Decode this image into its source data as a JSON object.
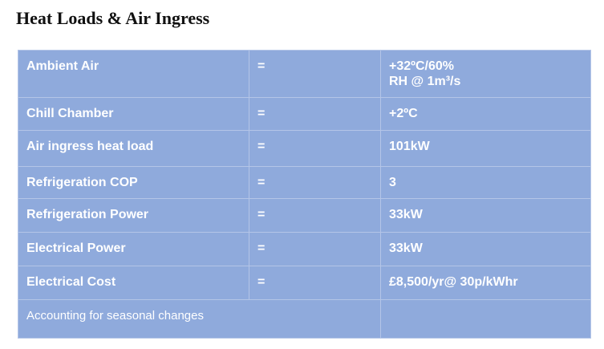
{
  "title": "Heat Loads & Air Ingress",
  "table": {
    "rows": [
      {
        "label": "Ambient Air",
        "op": "=",
        "value": "+32ºC/60%",
        "value_line2": "RH @ 1m³/s"
      },
      {
        "label": "Chill Chamber",
        "op": "=",
        "value": "+2ºC"
      },
      {
        "label": "Air ingress heat load",
        "op": "=",
        "value": "101kW"
      },
      {
        "label": "Refrigeration COP",
        "op": "=",
        "value": "3"
      },
      {
        "label": "Refrigeration Power",
        "op": "=",
        "value": "33kW"
      },
      {
        "label": "Electrical Power",
        "op": "=",
        "value": "33kW"
      },
      {
        "label": "Electrical Cost",
        "op": "=",
        "value": "£8,500/yr@ 30p/kWhr"
      }
    ],
    "footnote": "Accounting for seasonal changes"
  },
  "colors": {
    "table_bg": "#8faadc",
    "grid_line": "#b4c5e7",
    "text": "#ffffff",
    "highlight": "#e0201b"
  }
}
